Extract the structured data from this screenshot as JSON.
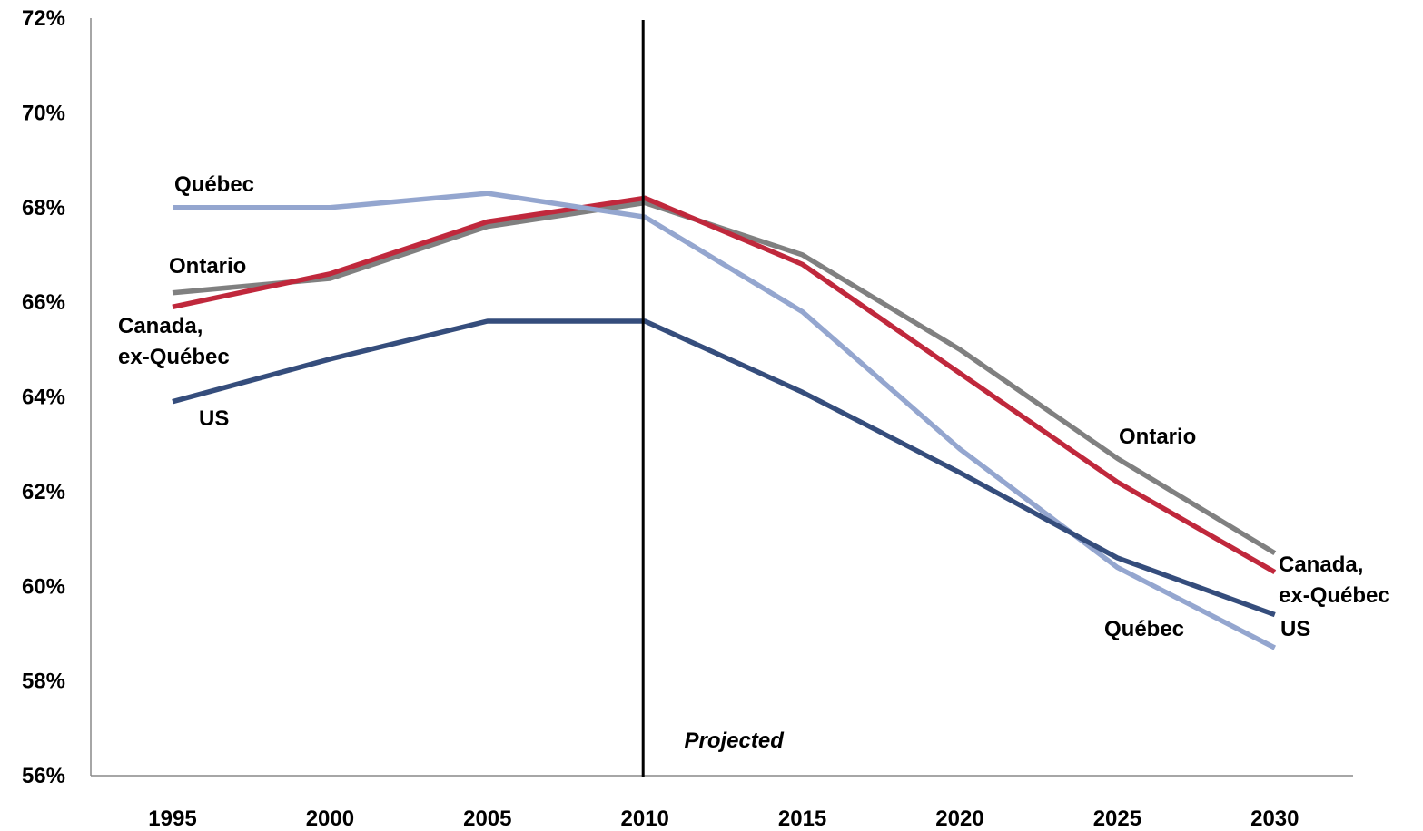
{
  "chart_data": {
    "type": "line",
    "categories": [
      "1995",
      "2000",
      "2005",
      "2010",
      "2015",
      "2020",
      "2025",
      "2030"
    ],
    "y_ticks": [
      "56%",
      "58%",
      "60%",
      "62%",
      "64%",
      "66%",
      "68%",
      "70%",
      "72%"
    ],
    "ylim": [
      56,
      72
    ],
    "grid": false,
    "legend": "none",
    "divider": {
      "at": "2010",
      "label": "Projected"
    },
    "series": [
      {
        "key": "ontario",
        "name": "Ontario",
        "color": "#808080",
        "values": [
          66.2,
          66.5,
          67.6,
          68.1,
          67.0,
          65.0,
          62.7,
          60.7
        ],
        "start_label": [
          "Ontario"
        ],
        "end_label": [
          "Ontario"
        ]
      },
      {
        "key": "canada_ex_quebec",
        "name": "Canada, ex-Québec",
        "color": "#C0283C",
        "values": [
          65.9,
          66.6,
          67.7,
          68.2,
          66.8,
          64.5,
          62.2,
          60.3
        ],
        "start_label": [
          "Canada,",
          "ex-Québec"
        ],
        "end_label": [
          "Canada,",
          "ex-Québec"
        ]
      },
      {
        "key": "quebec",
        "name": "Québec",
        "color": "#94A6CF",
        "values": [
          68.0,
          68.0,
          68.3,
          67.8,
          65.8,
          62.9,
          60.4,
          58.7
        ],
        "start_label": [
          "Québec"
        ],
        "end_label": [
          "Québec"
        ]
      },
      {
        "key": "us",
        "name": "US",
        "color": "#354D7C",
        "values": [
          63.9,
          64.8,
          65.6,
          65.6,
          64.1,
          62.4,
          60.6,
          59.4
        ],
        "start_label": [
          "US"
        ],
        "end_label": [
          "US"
        ]
      }
    ]
  }
}
